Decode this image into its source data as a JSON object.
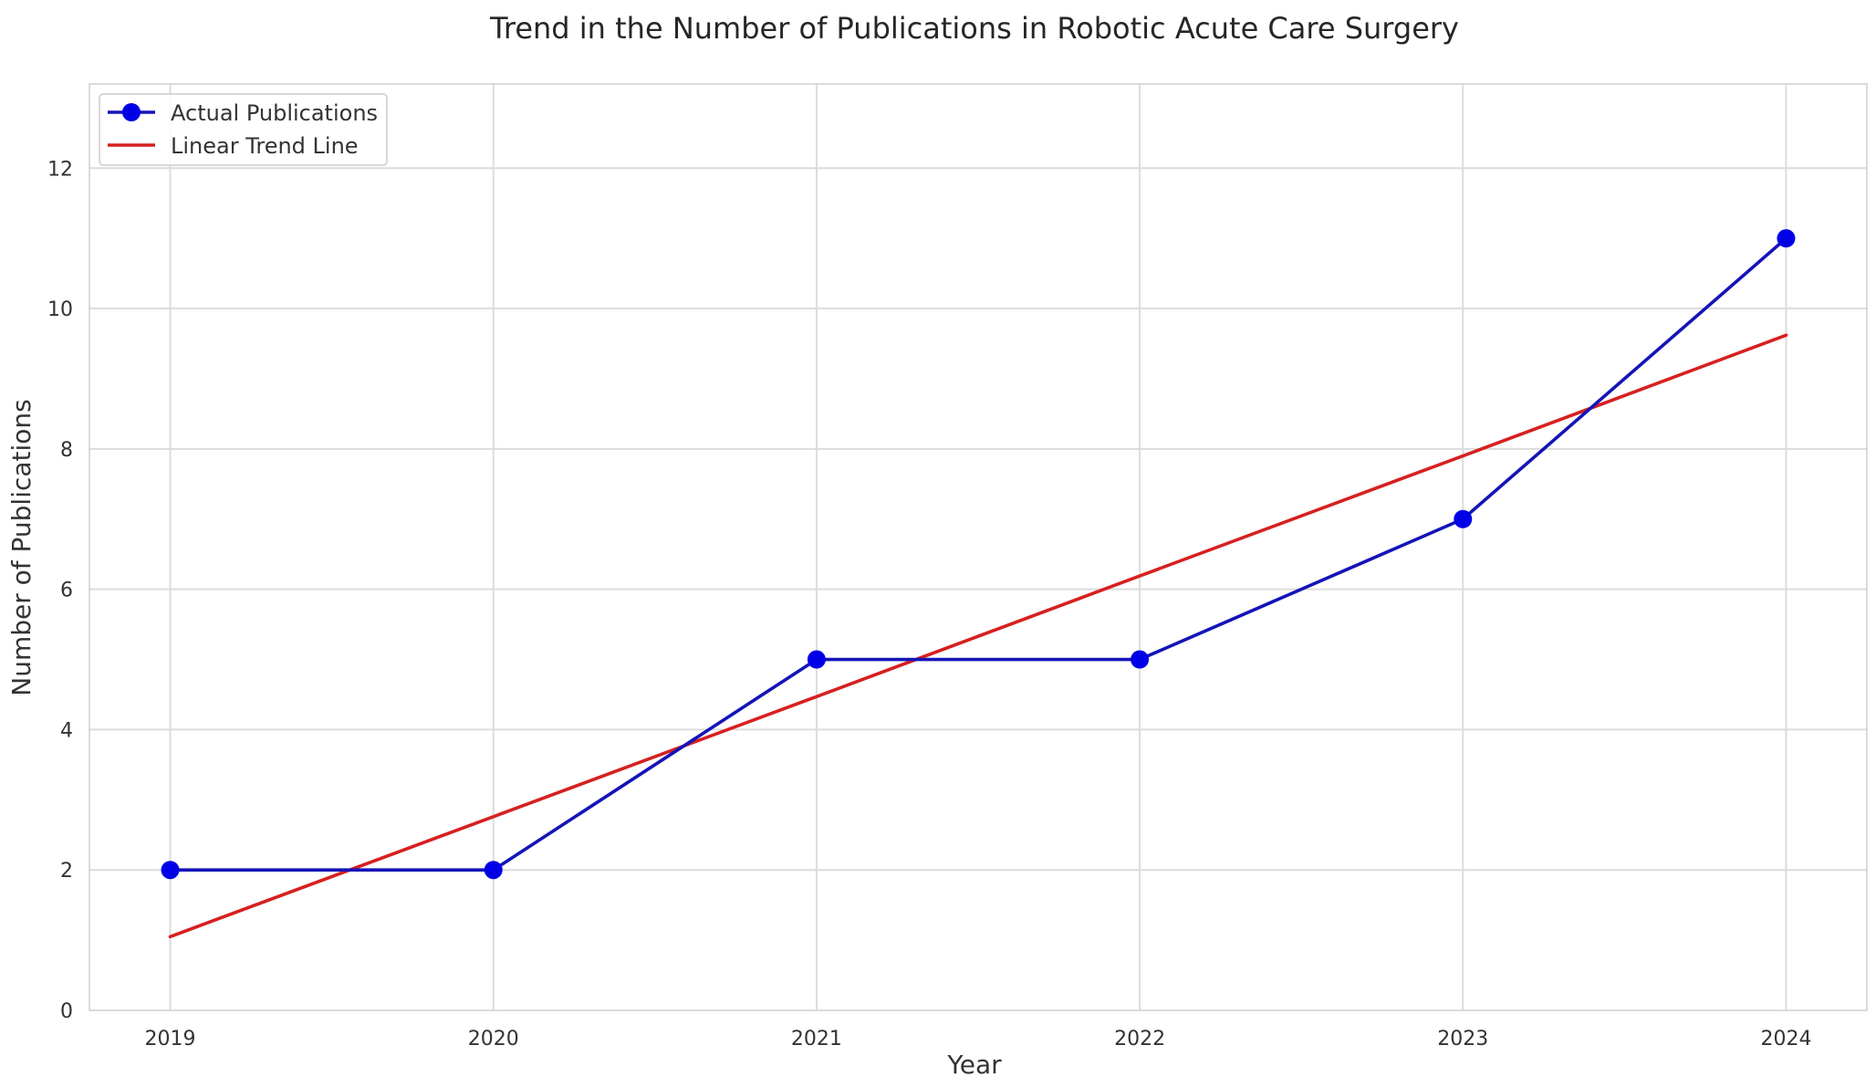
{
  "chart_data": {
    "type": "line",
    "title": "Trend in the Number of Publications in Robotic Acute Care Surgery",
    "xlabel": "Year",
    "ylabel": "Number of Publications",
    "x": [
      2019,
      2020,
      2021,
      2022,
      2023,
      2024
    ],
    "xticks": [
      "2019",
      "2020",
      "2021",
      "2022",
      "2023",
      "2024"
    ],
    "yticks": [
      "0",
      "2",
      "4",
      "6",
      "8",
      "10",
      "12"
    ],
    "ylim": [
      0,
      13.2
    ],
    "xlim": [
      2018.75,
      2024.25
    ],
    "grid": true,
    "legend_position": "top-left",
    "series": [
      {
        "name": "Actual Publications",
        "values": [
          2,
          2,
          5,
          5,
          7,
          11
        ],
        "color": "#0000e6",
        "line_color": "#1414b8",
        "marker": "circle"
      },
      {
        "name": "Linear Trend Line",
        "values": [
          1.05,
          2.76,
          4.47,
          6.19,
          7.9,
          9.62
        ],
        "color": "#d62020",
        "marker": "none"
      }
    ]
  }
}
